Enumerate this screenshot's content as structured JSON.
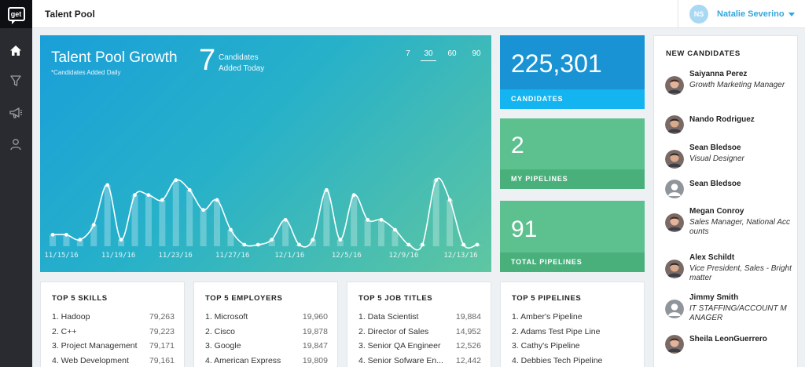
{
  "app": {
    "logo_text": "get"
  },
  "header": {
    "title": "Talent Pool"
  },
  "user": {
    "initials": "NS",
    "name": "Natalie Severino"
  },
  "growth": {
    "title": "Talent Pool Growth",
    "subtitle": "*Candidates Added Daily",
    "today_count": "7",
    "today_label_line1": "Candidates",
    "today_label_line2": "Added Today",
    "ranges": [
      "7",
      "30",
      "60",
      "90"
    ],
    "active_range": "30"
  },
  "chart_data": {
    "type": "area",
    "title": "Talent Pool Growth",
    "subtitle": "*Candidates Added Daily",
    "x_tick_labels": [
      "11/15/16",
      "11/19/16",
      "11/23/16",
      "11/27/16",
      "12/1/16",
      "12/5/16",
      "12/9/16",
      "12/13/16"
    ],
    "series": [
      {
        "name": "Candidates Added Daily",
        "values": [
          2,
          2,
          1,
          4,
          12,
          1,
          10,
          10,
          9,
          13,
          11,
          7,
          9,
          3,
          0,
          0,
          1,
          5,
          0,
          1,
          11,
          1,
          10,
          5,
          5,
          3,
          0,
          0,
          13,
          9,
          0,
          0
        ]
      }
    ],
    "ylim": [
      0,
      15
    ],
    "style": "smoothed line with white point markers over translucent bars"
  },
  "stats": [
    {
      "value": "225,301",
      "label": "CANDIDATES",
      "bg": "#1993d3",
      "foot_bg": "#14b4f0"
    },
    {
      "value": "2",
      "label": "MY PIPELINES",
      "bg": "#5dc08f",
      "foot_bg": "#49b07c"
    },
    {
      "value": "91",
      "label": "TOTAL PIPELINES",
      "bg": "#5dc08f",
      "foot_bg": "#49b07c"
    }
  ],
  "lists": [
    {
      "title": "TOP 5 SKILLS",
      "rows": [
        {
          "label": "1. Hadoop",
          "value": "79,263"
        },
        {
          "label": "2. C++",
          "value": "79,223"
        },
        {
          "label": "3. Project Management",
          "value": "79,171"
        },
        {
          "label": "4. Web Development",
          "value": "79,161"
        }
      ]
    },
    {
      "title": "TOP 5 EMPLOYERS",
      "rows": [
        {
          "label": "1. Microsoft",
          "value": "19,960"
        },
        {
          "label": "2. Cisco",
          "value": "19,878"
        },
        {
          "label": "3. Google",
          "value": "19,847"
        },
        {
          "label": "4. American Express",
          "value": "19,809"
        }
      ]
    },
    {
      "title": "TOP 5 JOB TITLES",
      "rows": [
        {
          "label": "1. Data Scientist",
          "value": "19,884"
        },
        {
          "label": "2. Director of Sales",
          "value": "14,952"
        },
        {
          "label": "3. Senior QA Engineer",
          "value": "12,526"
        },
        {
          "label": "4. Senior Sofware En...",
          "value": "12,442"
        }
      ]
    },
    {
      "title": "TOP 5 PIPELINES",
      "rows": [
        {
          "label": "1. Amber's Pipeline",
          "value": ""
        },
        {
          "label": "2. Adams Test Pipe Line",
          "value": ""
        },
        {
          "label": "3. Cathy's Pipeline",
          "value": ""
        },
        {
          "label": "4. Debbies Tech Pipeline",
          "value": ""
        }
      ]
    }
  ],
  "new_candidates": {
    "title": "NEW CANDIDATES",
    "items": [
      {
        "name": "Saiyanna Perez",
        "role": "Growth Marketing Manager",
        "avatar": "photo-woman"
      },
      {
        "name": "Nando Rodriguez",
        "role": "",
        "avatar": "photo-man"
      },
      {
        "name": "Sean Bledsoe",
        "role": "Visual Designer",
        "avatar": "photo-man"
      },
      {
        "name": "Sean Bledsoe",
        "role": "",
        "avatar": "placeholder"
      },
      {
        "name": "Megan Conroy",
        "role": "Sales Manager, National Accounts",
        "avatar": "photo-woman"
      },
      {
        "name": "Alex Schildt",
        "role": "Vice President, Sales - Brightmatter",
        "avatar": "photo-man"
      },
      {
        "name": "Jimmy Smith",
        "role": "IT STAFFING/ACCOUNT MANAGER",
        "avatar": "placeholder"
      },
      {
        "name": "Sheila LeonGuerrero",
        "role": "",
        "avatar": "photo-woman"
      }
    ]
  }
}
